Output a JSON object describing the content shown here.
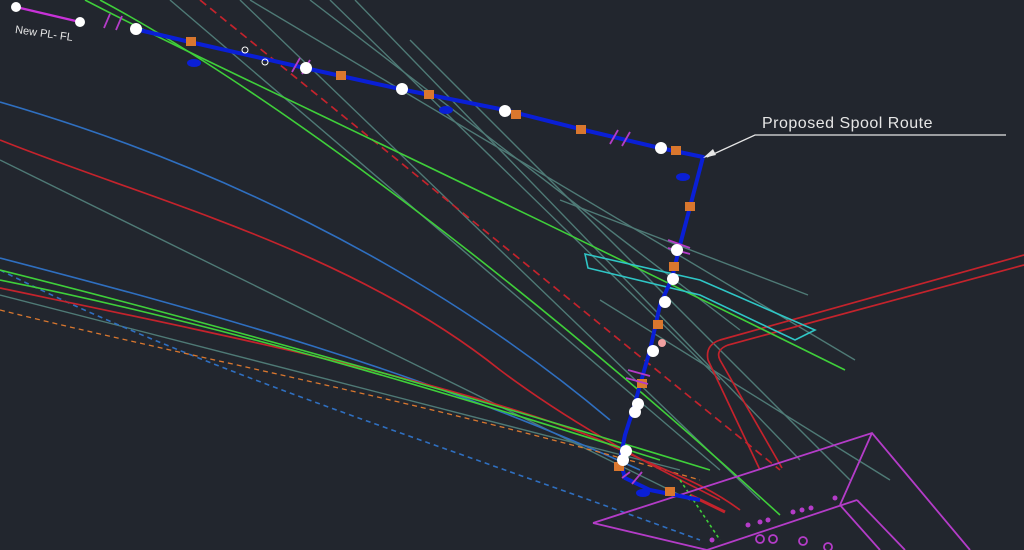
{
  "drawing": {
    "labels": {
      "pipeline_label": "New PL- FL",
      "spool_route_label": "Proposed Spool Route"
    },
    "colors": {
      "background": "#22262e",
      "spool_route": "#0a1fd6",
      "existing_lines": "#4f7a76",
      "green_lines": "#3fcf3a",
      "red_lines": "#c4232c",
      "blue_lines": "#2f6fc0",
      "magenta_structure": "#b43cc8",
      "cyan_outline": "#2fc6c6",
      "supports": "#d9772e",
      "annotation_text": "#e6e6e6"
    },
    "icons": [
      "support-marker-icon",
      "flange-icon",
      "node-point-icon",
      "leader-arrow-icon"
    ]
  }
}
